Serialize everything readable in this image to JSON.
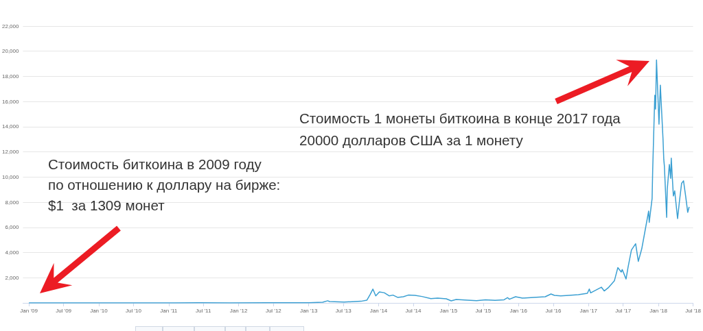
{
  "chart_data": {
    "type": "line",
    "color": "#3a9fd2",
    "x": [
      "2009-01-03",
      "2009-07-01",
      "2010-01-01",
      "2010-07-17",
      "2011-01-01",
      "2011-06-08",
      "2011-11-15",
      "2012-06-01",
      "2013-01-01",
      "2013-03-15",
      "2013-04-10",
      "2013-04-20",
      "2013-07-05",
      "2013-10-01",
      "2013-11-01",
      "2013-11-17",
      "2013-12-02",
      "2013-12-17",
      "2014-01-05",
      "2014-01-30",
      "2014-02-25",
      "2014-03-17",
      "2014-04-10",
      "2014-05-10",
      "2014-06-05",
      "2014-07-10",
      "2014-08-15",
      "2014-10-01",
      "2014-11-05",
      "2014-12-20",
      "2015-01-15",
      "2015-02-10",
      "2015-04-10",
      "2015-05-27",
      "2015-07-13",
      "2015-09-01",
      "2015-10-18",
      "2015-11-05",
      "2015-11-15",
      "2015-12-17",
      "2016-01-22",
      "2016-03-20",
      "2016-05-20",
      "2016-06-19",
      "2016-07-07",
      "2016-08-09",
      "2016-09-20",
      "2016-11-09",
      "2016-12-26",
      "2017-01-05",
      "2017-01-12",
      "2017-03-09",
      "2017-03-24",
      "2017-04-14",
      "2017-05-16",
      "2017-06-03",
      "2017-06-21",
      "2017-06-26",
      "2017-07-16",
      "2017-07-26",
      "2017-08-13",
      "2017-09-04",
      "2017-09-18",
      "2017-10-06",
      "2017-10-24",
      "2017-11-11",
      "2017-11-14",
      "2017-11-29",
      "2017-12-02",
      "2017-12-13",
      "2017-12-17",
      "2017-12-22",
      "2018-01-04",
      "2018-01-11",
      "2018-01-25",
      "2018-01-29",
      "2018-02-01",
      "2018-02-13",
      "2018-02-16",
      "2018-02-27",
      "2018-03-06",
      "2018-03-09",
      "2018-03-20",
      "2018-03-27",
      "2018-04-11",
      "2018-04-21",
      "2018-05-02",
      "2018-05-12",
      "2018-05-23",
      "2018-06-03",
      "2018-06-10"
    ],
    "values": [
      0,
      0,
      0,
      0,
      0,
      20,
      0,
      10,
      10,
      50,
      170,
      110,
      70,
      130,
      220,
      650,
      1100,
      560,
      870,
      810,
      560,
      620,
      440,
      490,
      620,
      600,
      510,
      340,
      380,
      330,
      160,
      270,
      220,
      180,
      250,
      200,
      250,
      420,
      290,
      490,
      380,
      430,
      490,
      710,
      600,
      560,
      600,
      650,
      760,
      1100,
      800,
      1250,
      950,
      1200,
      1750,
      2800,
      2450,
      2650,
      1900,
      2800,
      4200,
      4700,
      3300,
      4300,
      5800,
      7300,
      6400,
      8300,
      10500,
      16500,
      15400,
      19300,
      14200,
      17300,
      13000,
      11400,
      10900,
      6800,
      9000,
      11000,
      9900,
      11500,
      8500,
      8900,
      6700,
      8100,
      9500,
      9700,
      8500,
      7200,
      7600
    ],
    "xlim": [
      "2008-12-01",
      "2018-07-01"
    ],
    "xticks": [
      {
        "value": "2009-01",
        "label": "Jan '09"
      },
      {
        "value": "2009-07",
        "label": "Jul '09"
      },
      {
        "value": "2010-01",
        "label": "Jan '10"
      },
      {
        "value": "2010-07",
        "label": "Jul '10"
      },
      {
        "value": "2011-01",
        "label": "Jan '11"
      },
      {
        "value": "2011-07",
        "label": "Jul '11"
      },
      {
        "value": "2012-01",
        "label": "Jan '12"
      },
      {
        "value": "2012-07",
        "label": "Jul '12"
      },
      {
        "value": "2013-01",
        "label": "Jan '13"
      },
      {
        "value": "2013-07",
        "label": "Jul '13"
      },
      {
        "value": "2014-01",
        "label": "Jan '14"
      },
      {
        "value": "2014-07",
        "label": "Jul '14"
      },
      {
        "value": "2015-01",
        "label": "Jan '15"
      },
      {
        "value": "2015-07",
        "label": "Jul '15"
      },
      {
        "value": "2016-01",
        "label": "Jan '16"
      },
      {
        "value": "2016-07",
        "label": "Jul '16"
      },
      {
        "value": "2017-01",
        "label": "Jan '17"
      },
      {
        "value": "2017-07",
        "label": "Jul '17"
      },
      {
        "value": "2018-01",
        "label": "Jan '18"
      },
      {
        "value": "2018-07",
        "label": "Jul '18"
      }
    ],
    "ylim": [
      0,
      22000
    ],
    "yticks": [
      {
        "value": 2000,
        "label": "2,000"
      },
      {
        "value": 4000,
        "label": "4,000"
      },
      {
        "value": 6000,
        "label": "6,000"
      },
      {
        "value": 8000,
        "label": "8,000"
      },
      {
        "value": 10000,
        "label": "10,000"
      },
      {
        "value": 12000,
        "label": "12,000"
      },
      {
        "value": 14000,
        "label": "14,000"
      },
      {
        "value": 16000,
        "label": "16,000"
      },
      {
        "value": 18000,
        "label": "18,000"
      },
      {
        "value": 20000,
        "label": "20,000"
      },
      {
        "value": 22000,
        "label": "22,000"
      }
    ],
    "grid": "y",
    "annotations": [
      "Стоимость 1 монеты биткоина в конце 2017 года\n20000 долларов США за 1 монету",
      "Стоимость биткоина в 2009 году\nпо отношению к доллару на бирже:\n$1  за 1309 монет"
    ]
  }
}
